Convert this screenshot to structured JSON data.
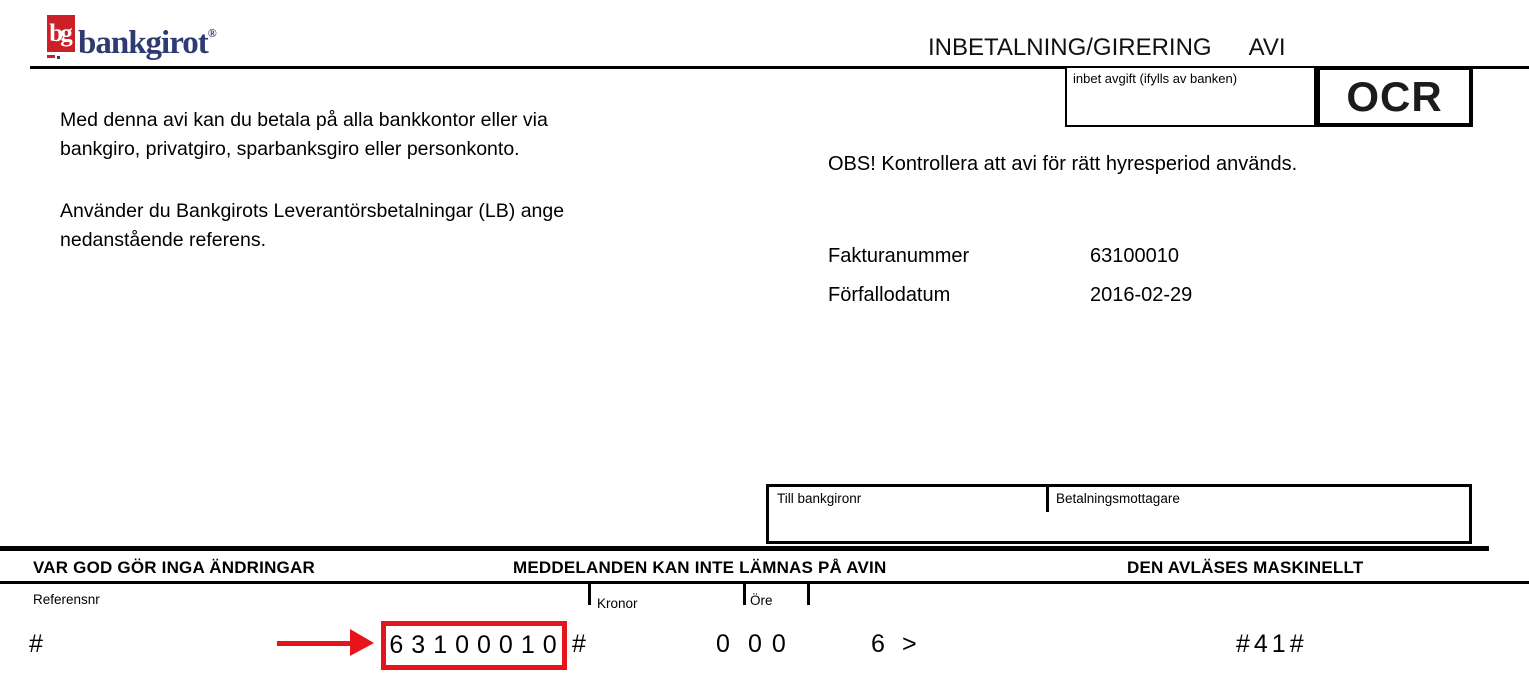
{
  "logo": {
    "mark": "bg",
    "name": "bankgirot",
    "registered": "®",
    "red": "#cc2028",
    "navy": "#2e3a72"
  },
  "header": {
    "title_main": "INBETALNING/GIRERING",
    "title_suffix": "AVI"
  },
  "fee_box": {
    "label": "inbet avgift (ifylls av banken)"
  },
  "ocr_box": {
    "label": "OCR"
  },
  "intro": {
    "para1_line1": "Med denna avi kan du betala på alla bankkontor eller via",
    "para1_line2": "bankgiro, privatgiro, sparbanksgiro eller personkonto.",
    "para2_line1": "Använder du Bankgirots Leverantörsbetalningar (LB) ange",
    "para2_line2": "nedanstående referens."
  },
  "notice": "OBS! Kontrollera att avi för rätt hyresperiod används.",
  "invoice": {
    "rows": [
      {
        "label": "Fakturanummer",
        "value": "63100010"
      },
      {
        "label": "Förfallodatum",
        "value": "2016-02-29"
      }
    ]
  },
  "payee_box": {
    "left_label": "Till bankgironr",
    "right_label": "Betalningsmottagare"
  },
  "instructions": {
    "left": "VAR GOD GÖR INGA ÄNDRINGAR",
    "center": "MEDDELANDEN KAN INTE LÄMNAS PÅ AVIN",
    "right": "DEN AVLÄSES MASKINELLT"
  },
  "field_labels": {
    "reference": "Referensnr",
    "kronor": "Kronor",
    "ore": "Öre"
  },
  "code_line": {
    "hash_left": "#",
    "reference": "63100010",
    "hash_mid": "#",
    "kronor": "0",
    "ore": "00",
    "check_digit": "6",
    "terminator": ">",
    "trailer": "#41#"
  },
  "colors": {
    "highlight_red": "#e8141b",
    "logo_red": "#cc2028",
    "logo_navy": "#2e3a72"
  }
}
